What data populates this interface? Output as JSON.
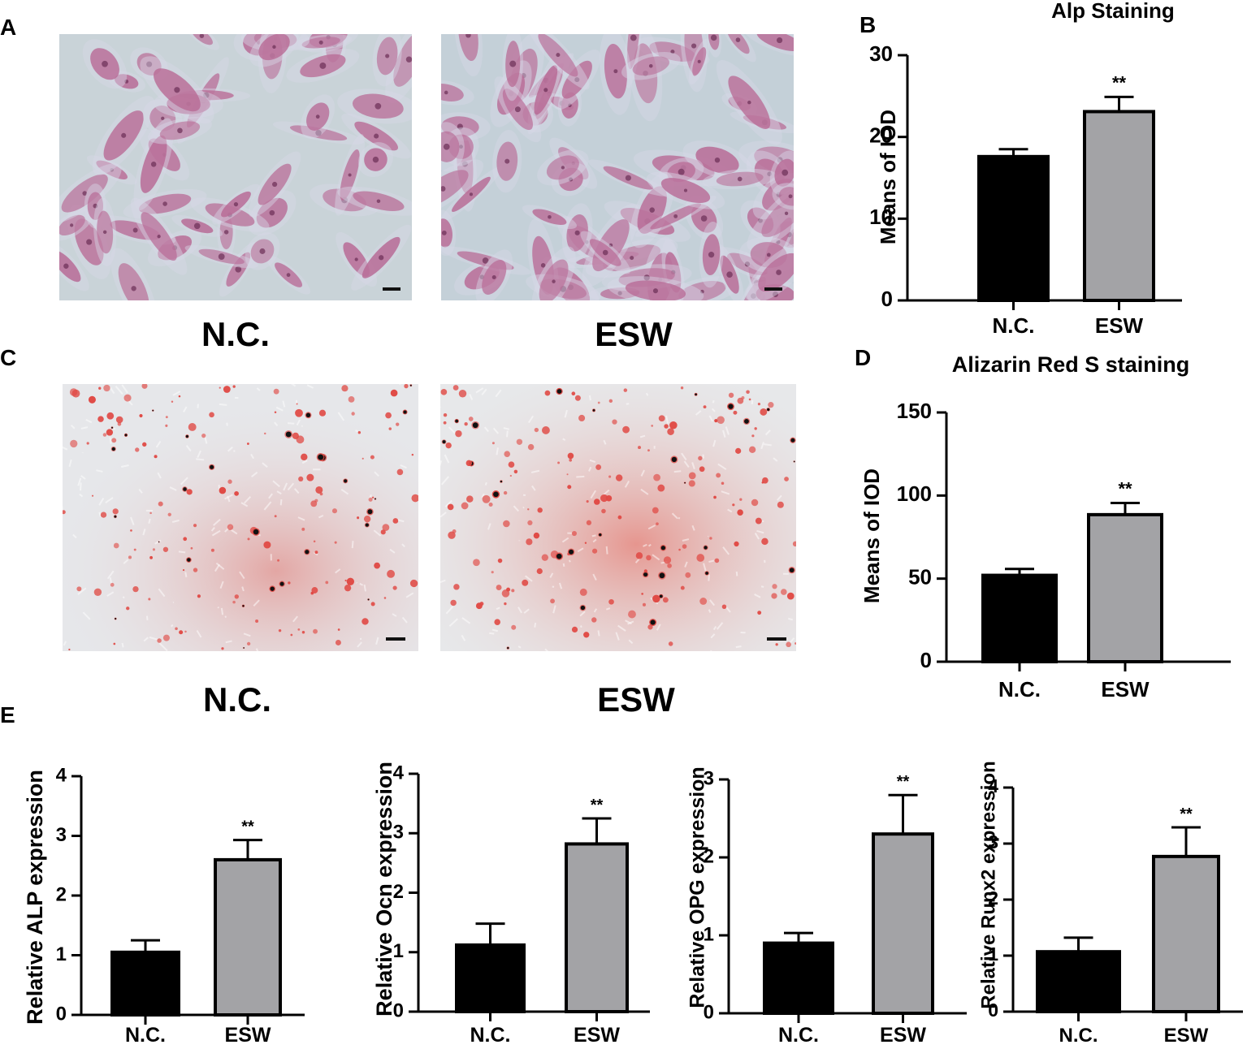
{
  "panels": {
    "A": "A",
    "B": "B",
    "C": "C",
    "D": "D",
    "E": "E"
  },
  "micrographs": {
    "A_left_label": "N.C.",
    "A_right_label": "ESW",
    "C_left_label": "N.C.",
    "C_right_label": "ESW",
    "alp_stain_bg": "#c7d1d6",
    "alp_cell_color": "#b86a95",
    "ars_bg": "#e6e8ea",
    "ars_red_color": "#e04a45"
  },
  "chart_data": [
    {
      "id": "B",
      "type": "bar",
      "title": "Alp Staining",
      "xlabel": "",
      "ylabel": "Means of IOD",
      "categories": [
        "N.C.",
        "ESW"
      ],
      "values": [
        17.6,
        23.1
      ],
      "errors": [
        0.9,
        1.8
      ],
      "significance": [
        "",
        "**"
      ],
      "ylim": [
        0,
        30
      ],
      "yticks": [
        0,
        10,
        20,
        30
      ],
      "colors": [
        "#000000",
        "#a3a3a6"
      ]
    },
    {
      "id": "D",
      "type": "bar",
      "title": "Alizarin Red S staining",
      "xlabel": "",
      "ylabel": "Means of IOD",
      "categories": [
        "N.C.",
        "ESW"
      ],
      "values": [
        52,
        88.5
      ],
      "errors": [
        3.8,
        7
      ],
      "significance": [
        "",
        "**"
      ],
      "ylim": [
        0,
        150
      ],
      "yticks": [
        0,
        50,
        100,
        150
      ],
      "colors": [
        "#000000",
        "#a3a3a6"
      ]
    },
    {
      "id": "E1",
      "type": "bar",
      "title": "",
      "xlabel": "",
      "ylabel": "Relative ALP expression",
      "categories": [
        "N.C.",
        "ESW"
      ],
      "values": [
        1.05,
        2.6
      ],
      "errors": [
        0.2,
        0.33
      ],
      "significance": [
        "",
        "**"
      ],
      "ylim": [
        0,
        4
      ],
      "yticks": [
        0,
        1,
        2,
        3,
        4
      ],
      "colors": [
        "#000000",
        "#a3a3a6"
      ]
    },
    {
      "id": "E2",
      "type": "bar",
      "title": "",
      "xlabel": "",
      "ylabel": "Relative Ocn expression",
      "categories": [
        "N.C.",
        "ESW"
      ],
      "values": [
        1.12,
        2.82
      ],
      "errors": [
        0.36,
        0.43
      ],
      "significance": [
        "",
        "**"
      ],
      "ylim": [
        0,
        4
      ],
      "yticks": [
        0,
        1,
        2,
        3,
        4
      ],
      "colors": [
        "#000000",
        "#a3a3a6"
      ]
    },
    {
      "id": "E3",
      "type": "bar",
      "title": "",
      "xlabel": "",
      "ylabel": "Relative OPG expression",
      "categories": [
        "N.C.",
        "ESW"
      ],
      "values": [
        0.9,
        2.3
      ],
      "errors": [
        0.13,
        0.5
      ],
      "significance": [
        "",
        "**"
      ],
      "ylim": [
        0,
        3
      ],
      "yticks": [
        0,
        1,
        2,
        3
      ],
      "colors": [
        "#000000",
        "#a3a3a6"
      ]
    },
    {
      "id": "E4",
      "type": "bar",
      "title": "",
      "xlabel": "",
      "ylabel": "Relative Runx2 expression",
      "categories": [
        "N.C.",
        "ESW"
      ],
      "values": [
        1.07,
        2.77
      ],
      "errors": [
        0.25,
        0.52
      ],
      "significance": [
        "",
        "**"
      ],
      "ylim": [
        0,
        4
      ],
      "yticks": [
        0,
        1,
        2,
        3,
        4
      ],
      "colors": [
        "#000000",
        "#a3a3a6"
      ]
    }
  ]
}
